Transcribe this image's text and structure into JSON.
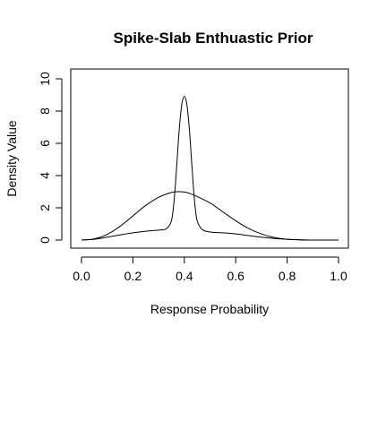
{
  "chart_data": {
    "type": "line",
    "title": "Spike-Slab Enthuastic Prior",
    "xlabel": "Response Probability",
    "ylabel": "Density Value",
    "xlim": [
      0,
      1
    ],
    "ylim": [
      0,
      10
    ],
    "xticks": [
      "0.0",
      "0.2",
      "0.4",
      "0.6",
      "0.8",
      "1.0"
    ],
    "yticks": [
      "0",
      "2",
      "4",
      "6",
      "8",
      "10"
    ],
    "grid": false,
    "series": [
      {
        "x": [
          0.0,
          0.05,
          0.1,
          0.15,
          0.2,
          0.25,
          0.3,
          0.35,
          0.38,
          0.4,
          0.42,
          0.45,
          0.5,
          0.55,
          0.6,
          0.65,
          0.7,
          0.75,
          0.8,
          0.85,
          0.9,
          0.95,
          1.0
        ],
        "values": [
          0.0,
          0.08,
          0.35,
          0.85,
          1.5,
          2.15,
          2.65,
          2.95,
          3.0,
          2.98,
          2.9,
          2.7,
          2.3,
          1.75,
          1.2,
          0.72,
          0.38,
          0.16,
          0.05,
          0.01,
          0.0,
          0.0,
          0.0
        ]
      },
      {
        "x": [
          0.0,
          0.05,
          0.1,
          0.15,
          0.2,
          0.25,
          0.3,
          0.33,
          0.35,
          0.36,
          0.37,
          0.38,
          0.39,
          0.4,
          0.41,
          0.42,
          0.43,
          0.44,
          0.45,
          0.47,
          0.5,
          0.55,
          0.6,
          0.65,
          0.7,
          0.75,
          0.8,
          0.85,
          0.9,
          0.95,
          1.0
        ],
        "values": [
          0.0,
          0.05,
          0.18,
          0.32,
          0.45,
          0.55,
          0.62,
          0.7,
          1.2,
          2.4,
          4.5,
          6.8,
          8.4,
          8.9,
          8.4,
          6.8,
          4.5,
          2.4,
          1.2,
          0.65,
          0.5,
          0.45,
          0.38,
          0.28,
          0.18,
          0.1,
          0.05,
          0.02,
          0.0,
          0.0,
          0.0
        ]
      }
    ]
  }
}
